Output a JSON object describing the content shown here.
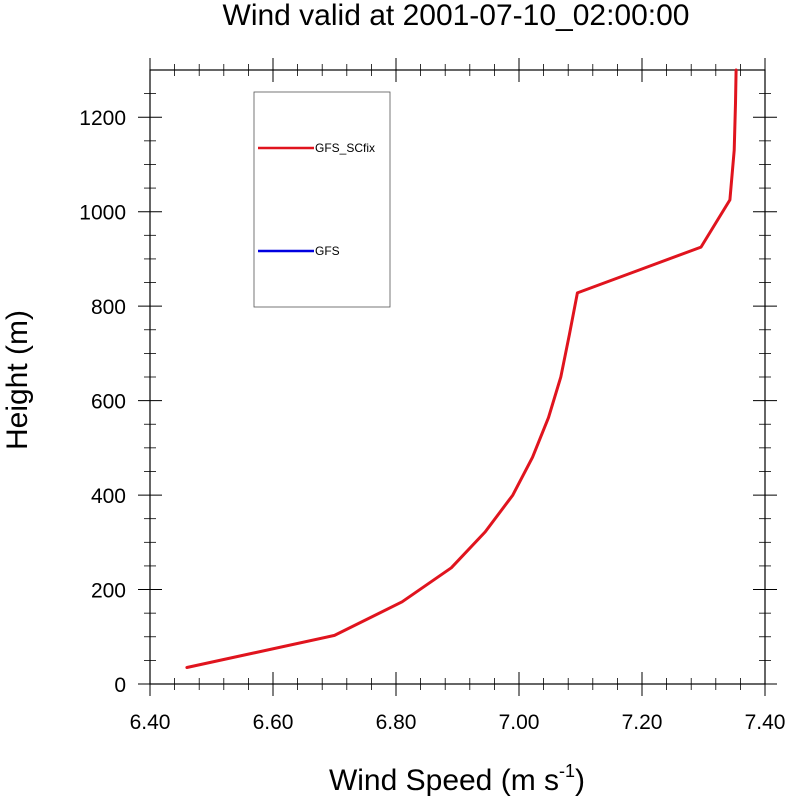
{
  "chart_data": {
    "type": "line",
    "title": "Wind valid at 2001-07-10_02:00:00",
    "xlabel_main": "Wind Speed (m s",
    "xlabel_sup": "-1",
    "xlabel_close": ")",
    "ylabel": "Height (m)",
    "xlim": [
      6.4,
      7.4
    ],
    "ylim": [
      0,
      1300
    ],
    "x_ticks": [
      6.4,
      6.6,
      6.8,
      7.0,
      7.2,
      7.4
    ],
    "x_tick_labels": [
      "6.40",
      "6.60",
      "6.80",
      "7.00",
      "7.20",
      "7.40"
    ],
    "y_ticks": [
      0,
      200,
      400,
      600,
      800,
      1000,
      1200
    ],
    "y_tick_labels": [
      "0",
      "200",
      "400",
      "600",
      "800",
      "1000",
      "1200"
    ],
    "grid": false,
    "legend_position": "top-left",
    "series": [
      {
        "name": "GFS_SCfix",
        "color": "#e0141e",
        "x": [
          6.46,
          6.7,
          6.81,
          6.89,
          6.945,
          6.99,
          7.022,
          7.048,
          7.068,
          7.082,
          7.095,
          7.296,
          7.343,
          7.35,
          7.352,
          7.353
        ],
        "y": [
          35,
          103,
          174,
          246,
          322,
          400,
          480,
          564,
          650,
          740,
          828,
          925,
          1025,
          1130,
          1230,
          1300
        ]
      },
      {
        "name": "GFS",
        "color": "#0000e0",
        "x": [],
        "y": []
      }
    ]
  }
}
